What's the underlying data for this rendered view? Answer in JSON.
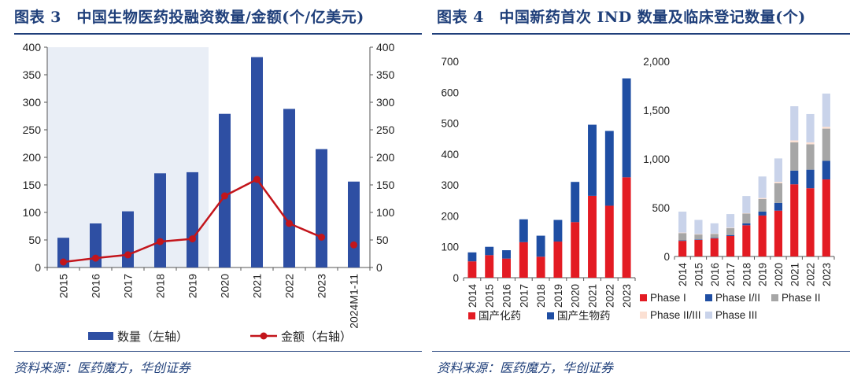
{
  "left": {
    "title": "图表 3　中国生物医药投融资数量/金额(个/亿美元)",
    "source": "资料来源：医药魔方，华创证券",
    "legend": {
      "bar": "数量（左轴）",
      "line": "金额（右轴）"
    },
    "colors": {
      "bar": "#2e4fa3",
      "line": "#c3151b",
      "shade": "#e9eef6",
      "title": "#1f3f7a"
    }
  },
  "right": {
    "title": "图表 4　中国新药首次 IND 数量及临床登记数量(个)",
    "source": "资料来源：医药魔方，华创证券",
    "legend_a": [
      "国产化药",
      "国产生物药"
    ],
    "legend_b": [
      "Phase I",
      "Phase I/II",
      "Phase II",
      "Phase II/III",
      "Phase III"
    ]
  },
  "chart_data": [
    {
      "type": "bar",
      "categories": [
        "2015",
        "2016",
        "2017",
        "2018",
        "2019",
        "2020",
        "2021",
        "2022",
        "2023",
        "2024M1-11"
      ],
      "series": [
        {
          "name": "数量（左轴）",
          "axis": "left",
          "type": "bar",
          "color": "#2e4fa3",
          "values": [
            54,
            80,
            102,
            171,
            173,
            279,
            382,
            288,
            215,
            156
          ]
        },
        {
          "name": "金额（右轴）",
          "axis": "right",
          "type": "line",
          "color": "#c3151b",
          "values": [
            10,
            17,
            23,
            47,
            52,
            130,
            160,
            80,
            55,
            41
          ]
        }
      ],
      "ylim_left": [
        0,
        400
      ],
      "ylim_right": [
        0,
        400
      ],
      "yticks": [
        0,
        50,
        100,
        150,
        200,
        250,
        300,
        350,
        400
      ],
      "shaded_categories": [
        "2015",
        "2016",
        "2017",
        "2018",
        "2019"
      ],
      "line_gap_before": "2024M1-11",
      "legend_position": "bottom"
    },
    {
      "type": "bar",
      "stacked": true,
      "categories": [
        "2014",
        "2015",
        "2016",
        "2017",
        "2018",
        "2019",
        "2020",
        "2021",
        "2022",
        "2023"
      ],
      "series": [
        {
          "name": "国产化药",
          "color": "#e31b23",
          "values": [
            53,
            73,
            62,
            115,
            68,
            117,
            180,
            265,
            233,
            325
          ]
        },
        {
          "name": "国产生物药",
          "color": "#1f4ea3",
          "values": [
            29,
            27,
            27,
            74,
            68,
            70,
            130,
            230,
            242,
            320
          ]
        }
      ],
      "ylim": [
        0,
        700
      ],
      "yticks": [
        0,
        100,
        200,
        300,
        400,
        500,
        600,
        700
      ],
      "legend_position": "bottom"
    },
    {
      "type": "bar",
      "stacked": true,
      "categories": [
        "2014",
        "2015",
        "2016",
        "2017",
        "2018",
        "2019",
        "2020",
        "2021",
        "2022",
        "2023"
      ],
      "series": [
        {
          "name": "Phase I",
          "color": "#e31b23",
          "values": [
            160,
            170,
            185,
            210,
            320,
            420,
            470,
            740,
            700,
            790
          ]
        },
        {
          "name": "Phase I/II",
          "color": "#1f4ea3",
          "values": [
            5,
            5,
            5,
            10,
            20,
            40,
            80,
            140,
            190,
            190
          ]
        },
        {
          "name": "Phase II",
          "color": "#a6a6a6",
          "values": [
            75,
            50,
            40,
            70,
            100,
            130,
            200,
            290,
            260,
            330
          ]
        },
        {
          "name": "Phase II/III",
          "color": "#fbe0d3",
          "values": [
            5,
            5,
            5,
            5,
            5,
            10,
            15,
            20,
            20,
            20
          ]
        },
        {
          "name": "Phase III",
          "color": "#c9d3ea",
          "values": [
            215,
            145,
            105,
            140,
            175,
            220,
            240,
            350,
            290,
            340
          ]
        }
      ],
      "ylim": [
        0,
        2000
      ],
      "yticks": [
        "0",
        "500",
        "1,000",
        "1,500",
        "2,000"
      ],
      "legend_position": "bottom"
    }
  ]
}
